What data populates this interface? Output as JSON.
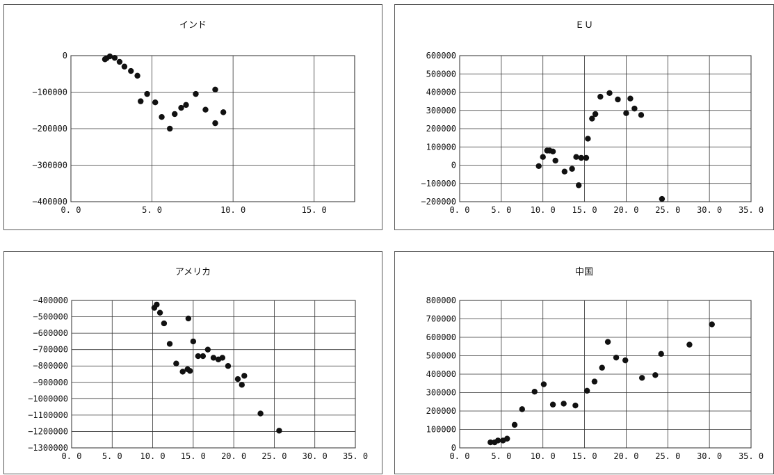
{
  "chart_data": [
    {
      "type": "scatter",
      "title": "インド",
      "xlim": [
        0,
        17.5
      ],
      "ylim": [
        -400000,
        0
      ],
      "x_ticks": [
        0,
        5,
        10,
        15
      ],
      "x_tick_labels": [
        "0. 0",
        "5. 0",
        "10. 0",
        "15. 0"
      ],
      "y_ticks": [
        0,
        -100000,
        -200000,
        -300000,
        -400000
      ],
      "y_tick_labels": [
        "0",
        "−100000",
        "−200000",
        "−300000",
        "−400000"
      ],
      "grid": true,
      "points": [
        [
          2.1,
          -10000
        ],
        [
          2.2,
          -7000
        ],
        [
          2.4,
          -2000
        ],
        [
          2.7,
          -6000
        ],
        [
          3.0,
          -17000
        ],
        [
          3.3,
          -30000
        ],
        [
          3.7,
          -42000
        ],
        [
          4.1,
          -55000
        ],
        [
          4.3,
          -125000
        ],
        [
          4.7,
          -105000
        ],
        [
          5.2,
          -128000
        ],
        [
          5.6,
          -168000
        ],
        [
          6.1,
          -200000
        ],
        [
          6.4,
          -160000
        ],
        [
          6.8,
          -143000
        ],
        [
          7.1,
          -135000
        ],
        [
          7.7,
          -105000
        ],
        [
          8.3,
          -148000
        ],
        [
          8.9,
          -93000
        ],
        [
          8.9,
          -185000
        ],
        [
          9.4,
          -155000
        ]
      ]
    },
    {
      "type": "scatter",
      "title": "ＥＵ",
      "xlim": [
        0,
        35
      ],
      "ylim": [
        -200000,
        600000
      ],
      "x_ticks": [
        0,
        5,
        10,
        15,
        20,
        25,
        30,
        35
      ],
      "x_tick_labels": [
        "0. 0",
        "5. 0",
        "10. 0",
        "15. 0",
        "20. 0",
        "25. 0",
        "30. 0",
        "35. 0"
      ],
      "y_ticks": [
        600000,
        500000,
        400000,
        300000,
        200000,
        100000,
        0,
        -100000,
        -200000
      ],
      "y_tick_labels": [
        "600000",
        "500000",
        "400000",
        "300000",
        "200000",
        "100000",
        "0",
        "−100000",
        "−200000"
      ],
      "grid": true,
      "points": [
        [
          9.5,
          -5000
        ],
        [
          10.0,
          45000
        ],
        [
          10.5,
          80000
        ],
        [
          10.8,
          80000
        ],
        [
          11.2,
          75000
        ],
        [
          11.5,
          25000
        ],
        [
          12.6,
          -35000
        ],
        [
          13.5,
          -20000
        ],
        [
          14.0,
          45000
        ],
        [
          14.3,
          -110000
        ],
        [
          14.6,
          40000
        ],
        [
          15.2,
          40000
        ],
        [
          15.4,
          145000
        ],
        [
          15.9,
          255000
        ],
        [
          16.3,
          280000
        ],
        [
          16.9,
          375000
        ],
        [
          18.0,
          395000
        ],
        [
          19.0,
          360000
        ],
        [
          20.0,
          285000
        ],
        [
          20.5,
          365000
        ],
        [
          21.0,
          310000
        ],
        [
          21.8,
          275000
        ],
        [
          24.3,
          -185000
        ]
      ]
    },
    {
      "type": "scatter",
      "title": "アメリカ",
      "xlim": [
        0,
        35
      ],
      "ylim": [
        -1300000,
        -400000
      ],
      "x_ticks": [
        0,
        5,
        10,
        15,
        20,
        25,
        30,
        35
      ],
      "x_tick_labels": [
        "0. 0",
        "5. 0",
        "10. 0",
        "15. 0",
        "20. 0",
        "25. 0",
        "30. 0",
        "35. 0"
      ],
      "y_ticks": [
        -400000,
        -500000,
        -600000,
        -700000,
        -800000,
        -900000,
        -1000000,
        -1100000,
        -1200000,
        -1300000
      ],
      "y_tick_labels": [
        "−400000",
        "−500000",
        "−600000",
        "−700000",
        "−800000",
        "−900000",
        "−1000000",
        "−1100000",
        "−1200000",
        "−1300000"
      ],
      "grid": true,
      "points": [
        [
          10.2,
          -445000
        ],
        [
          10.5,
          -425000
        ],
        [
          10.9,
          -475000
        ],
        [
          11.4,
          -540000
        ],
        [
          12.1,
          -665000
        ],
        [
          12.9,
          -785000
        ],
        [
          13.7,
          -835000
        ],
        [
          14.3,
          -820000
        ],
        [
          14.6,
          -830000
        ],
        [
          14.4,
          -510000
        ],
        [
          15.0,
          -650000
        ],
        [
          15.6,
          -740000
        ],
        [
          16.2,
          -740000
        ],
        [
          16.8,
          -700000
        ],
        [
          17.5,
          -750000
        ],
        [
          18.1,
          -760000
        ],
        [
          18.6,
          -750000
        ],
        [
          19.3,
          -800000
        ],
        [
          20.5,
          -880000
        ],
        [
          21.0,
          -915000
        ],
        [
          21.3,
          -860000
        ],
        [
          23.3,
          -1090000
        ],
        [
          25.6,
          -1195000
        ]
      ]
    },
    {
      "type": "scatter",
      "title": "中国",
      "xlim": [
        0,
        35
      ],
      "ylim": [
        0,
        800000
      ],
      "x_ticks": [
        0,
        5,
        10,
        15,
        20,
        25,
        30,
        35
      ],
      "x_tick_labels": [
        "0. 0",
        "5. 0",
        "10. 0",
        "15. 0",
        "20. 0",
        "25. 0",
        "30. 0",
        "35. 0"
      ],
      "y_ticks": [
        800000,
        700000,
        600000,
        500000,
        400000,
        300000,
        200000,
        100000,
        0
      ],
      "y_tick_labels": [
        "800000",
        "700000",
        "600000",
        "500000",
        "400000",
        "300000",
        "200000",
        "100000",
        "0"
      ],
      "grid": true,
      "points": [
        [
          3.7,
          30000
        ],
        [
          4.2,
          30000
        ],
        [
          4.6,
          40000
        ],
        [
          5.2,
          40000
        ],
        [
          5.7,
          50000
        ],
        [
          6.6,
          125000
        ],
        [
          7.5,
          210000
        ],
        [
          9.0,
          305000
        ],
        [
          10.1,
          345000
        ],
        [
          11.2,
          235000
        ],
        [
          12.5,
          240000
        ],
        [
          13.9,
          230000
        ],
        [
          15.3,
          310000
        ],
        [
          16.2,
          360000
        ],
        [
          17.1,
          435000
        ],
        [
          17.8,
          575000
        ],
        [
          18.8,
          490000
        ],
        [
          19.9,
          475000
        ],
        [
          21.9,
          380000
        ],
        [
          23.5,
          395000
        ],
        [
          24.2,
          510000
        ],
        [
          27.6,
          560000
        ],
        [
          30.3,
          670000
        ]
      ]
    }
  ]
}
